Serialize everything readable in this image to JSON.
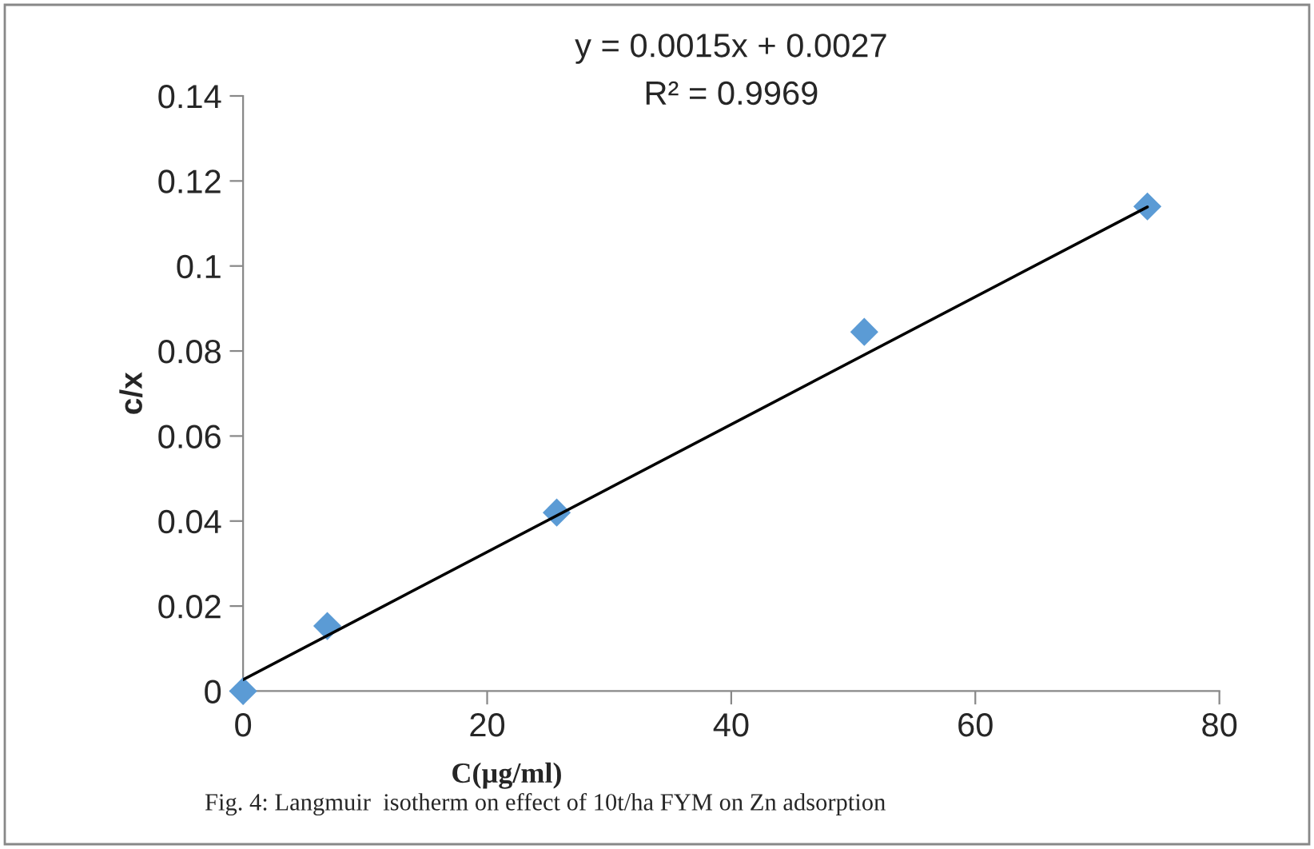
{
  "chart_data": {
    "type": "scatter",
    "xlabel": "C(µg/ml)",
    "ylabel": "c/x",
    "annotations": [
      "y = 0.0015x + 0.0027",
      "R² = 0.9969",
      "Fig. 4: Langmuir  isotherm on effect of 10t/ha FYM on Zn adsorption"
    ],
    "x": [
      0,
      6.9,
      25.7,
      50.9,
      74.1
    ],
    "series": [
      {
        "color": "#5b9bd5",
        "marker": "diamond",
        "values": [
          0,
          0.0153,
          0.042,
          0.0845,
          0.114
        ]
      },
      {
        "type": "line",
        "color": "#000000",
        "x": [
          0,
          74.1
        ],
        "values": [
          0.0027,
          0.1139
        ],
        "line_style": "solid",
        "marker": "none"
      }
    ],
    "xlim": [
      0,
      80
    ],
    "xticks": [
      0,
      20,
      40,
      60,
      80
    ],
    "ylim": [
      0,
      0.14
    ],
    "yticks": [
      0,
      0.02,
      0.04,
      0.06,
      0.08,
      0.1,
      0.12,
      0.14
    ],
    "grid": false
  }
}
